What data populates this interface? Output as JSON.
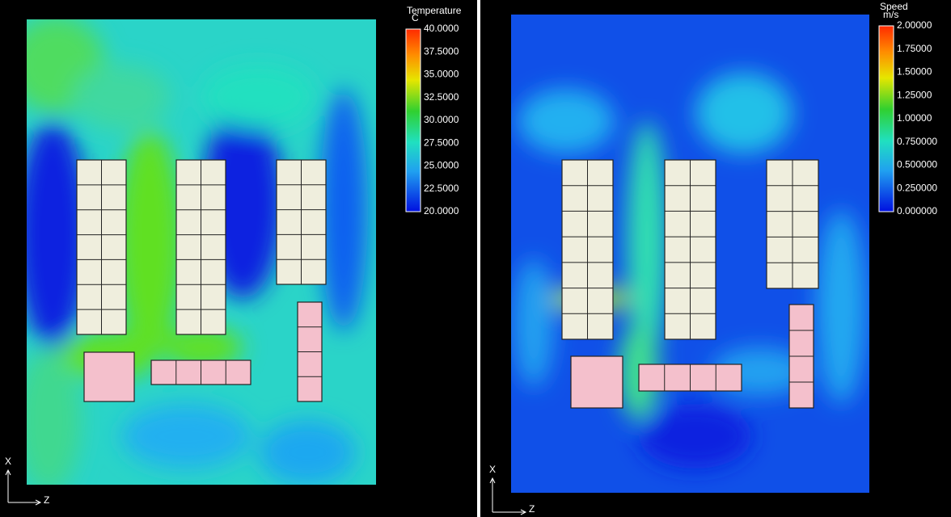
{
  "panels": [
    {
      "colorbar": {
        "title": "Temperature",
        "unit": "C",
        "labels": [
          "40.0000",
          "37.5000",
          "35.0000",
          "32.5000",
          "30.0000",
          "27.5000",
          "25.0000",
          "22.5000",
          "20.0000"
        ]
      },
      "axes": {
        "vertical": "X",
        "horizontal": "Z"
      }
    },
    {
      "colorbar": {
        "title": "Speed",
        "unit": "m/s",
        "labels": [
          "2.00000",
          "1.75000",
          "1.50000",
          "1.25000",
          "1.00000",
          "0.750000",
          "0.500000",
          "0.250000",
          "0.000000"
        ]
      },
      "axes": {
        "vertical": "X",
        "horizontal": "Z"
      }
    }
  ]
}
